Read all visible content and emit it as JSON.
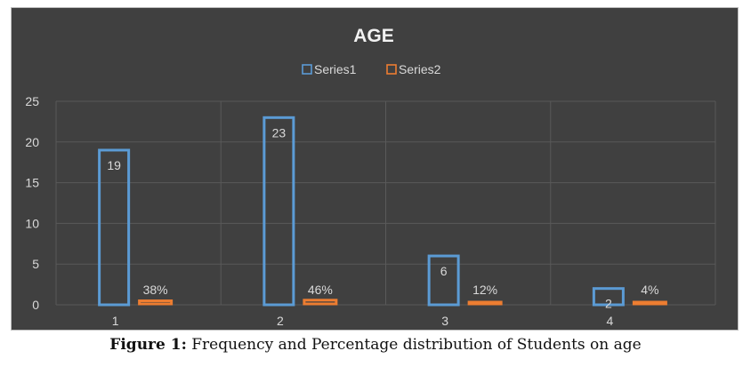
{
  "chart_data": {
    "type": "bar",
    "title": "AGE",
    "categories": [
      "1",
      "2",
      "3",
      "4"
    ],
    "series": [
      {
        "name": "Series1",
        "values": [
          19,
          23,
          6,
          2
        ],
        "labels": [
          "19",
          "23",
          "6",
          "2"
        ],
        "color": "#5b9bd5"
      },
      {
        "name": "Series2",
        "values": [
          0.38,
          0.46,
          0.12,
          0.04
        ],
        "labels": [
          "38%",
          "46%",
          "12%",
          "4%"
        ],
        "color": "#ed7d31"
      }
    ],
    "yticks": [
      "0",
      "5",
      "10",
      "15",
      "20",
      "25"
    ],
    "ylim": [
      0,
      25
    ],
    "grid": true,
    "legend": "top-center",
    "xlabel": "",
    "ylabel": ""
  },
  "colors": {
    "background": "#404040",
    "grid": "#595959",
    "text": "#d9d9d9",
    "title": "#f2f2f2"
  },
  "caption": {
    "label": "Figure 1:",
    "text": " Frequency and Percentage distribution of Students on age"
  }
}
